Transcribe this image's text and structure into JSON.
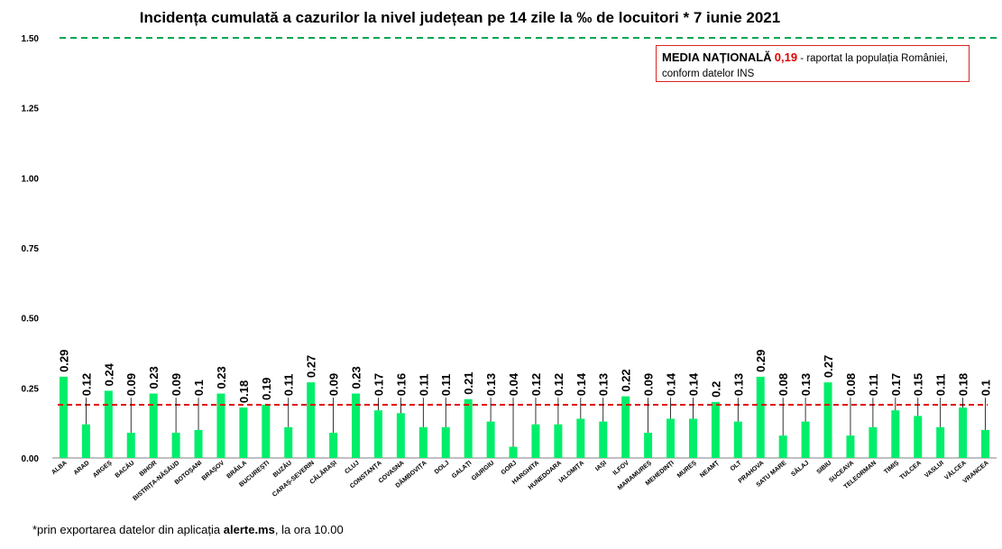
{
  "title": "Incidența cumulată a cazurilor la nivel județean pe 14 zile la ‰ de locuitori *  7 iunie 2021",
  "legend": {
    "label": "MEDIA NAȚIONALĂ",
    "value": "0,19",
    "text_line1": " - raportat la populația României,",
    "text_line2": "conform datelor INS"
  },
  "footnote": {
    "prefix": "*prin exportarea datelor din aplicația ",
    "bold": "alerte.ms",
    "suffix": ", la ora 10.00"
  },
  "colors": {
    "bar": "#00ee6a",
    "threshold_line": "#00a651",
    "mean_line": "#e00000",
    "legend_border": "#dd2222"
  },
  "chart_data": {
    "type": "bar",
    "title": "Incidența cumulată a cazurilor la nivel județean pe 14 zile la ‰ de locuitori *  7 iunie 2021",
    "xlabel": "",
    "ylabel": "",
    "ylim": [
      0,
      1.5
    ],
    "yticks": [
      "0.00",
      "0.25",
      "0.50",
      "0.75",
      "1.00",
      "1.25",
      "1.50"
    ],
    "yticks_values": [
      0,
      0.25,
      0.5,
      0.75,
      1.0,
      1.25,
      1.5
    ],
    "grid": false,
    "reference_lines": [
      {
        "value": 1.5,
        "style": "dashed",
        "color": "#00a651"
      },
      {
        "value": 0.19,
        "style": "dashed",
        "color": "#e00000"
      }
    ],
    "categories": [
      "ALBA",
      "ARAD",
      "ARGEȘ",
      "BACĂU",
      "BIHOR",
      "BISTRIȚA-NĂSĂUD",
      "BOTOȘANI",
      "BRAȘOV",
      "BRĂILA",
      "BUCUREȘTI",
      "BUZĂU",
      "CARAȘ-SEVERIN",
      "CĂLĂRAȘI",
      "CLUJ",
      "CONSTANȚA",
      "COVASNA",
      "DÂMBOVIȚA",
      "DOLJ",
      "GALAȚI",
      "GIURGIU",
      "GORJ",
      "HARGHITA",
      "HUNEDOARA",
      "IALOMIȚA",
      "IAȘI",
      "ILFOV",
      "MARAMUREȘ",
      "MEHEDINȚI",
      "MUREȘ",
      "NEAMȚ",
      "OLT",
      "PRAHOVA",
      "SATU MARE",
      "SĂLAJ",
      "SIBIU",
      "SUCEAVA",
      "TELEORMAN",
      "TIMIȘ",
      "TULCEA",
      "VASLUI",
      "VÂLCEA",
      "VRANCEA"
    ],
    "values": [
      0.29,
      0.12,
      0.24,
      0.09,
      0.23,
      0.09,
      0.1,
      0.23,
      0.18,
      0.19,
      0.11,
      0.27,
      0.09,
      0.23,
      0.17,
      0.16,
      0.11,
      0.11,
      0.21,
      0.13,
      0.04,
      0.12,
      0.12,
      0.14,
      0.13,
      0.22,
      0.09,
      0.14,
      0.14,
      0.2,
      0.13,
      0.29,
      0.08,
      0.13,
      0.27,
      0.08,
      0.11,
      0.17,
      0.15,
      0.11,
      0.18,
      0.1
    ],
    "data_labels": [
      "0.29",
      "0.12",
      "0.24",
      "0.09",
      "0.23",
      "0.09",
      "0.1",
      "0.23",
      "0.18",
      "0.19",
      "0.11",
      "0.27",
      "0.09",
      "0.23",
      "0.17",
      "0.16",
      "0.11",
      "0.11",
      "0.21",
      "0.13",
      "0.04",
      "0.12",
      "0.12",
      "0.14",
      "0.13",
      "0.22",
      "0.09",
      "0.14",
      "0.14",
      "0.2",
      "0.13",
      "0.29",
      "0.08",
      "0.13",
      "0.27",
      "0.08",
      "0.11",
      "0.17",
      "0.15",
      "0.11",
      "0.18",
      "0.1"
    ],
    "labels_shown": [
      true,
      true,
      false,
      true,
      false,
      true,
      true,
      true,
      false,
      false,
      true,
      true,
      true,
      false,
      true,
      true,
      true,
      true,
      true,
      true,
      true,
      true,
      true,
      true,
      true,
      true,
      true,
      true,
      true,
      true,
      true,
      true,
      true,
      true,
      true,
      true,
      true,
      true,
      true,
      true,
      true,
      true
    ]
  }
}
